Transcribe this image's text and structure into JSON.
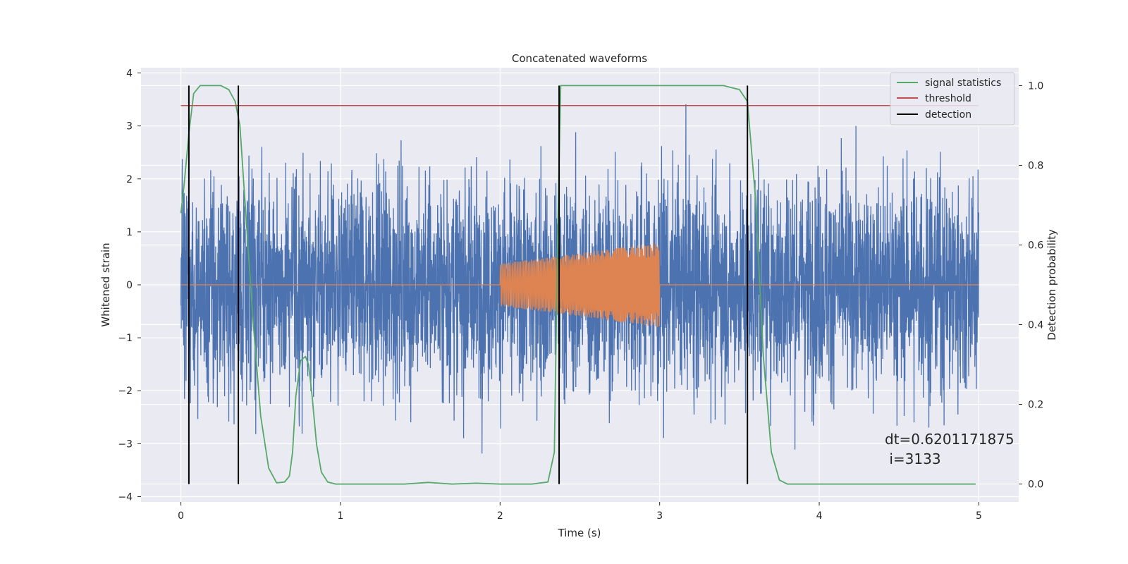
{
  "chart_data": {
    "type": "line",
    "title": "Concatenated waveforms",
    "xlabel": "Time (s)",
    "ylabel": "Whitened strain",
    "y2label": "Detection probability",
    "xlim": [
      -0.25,
      5.25
    ],
    "ylim": [
      -4.1,
      4.1
    ],
    "y2lim": [
      -0.045,
      1.045
    ],
    "xticks": [
      0,
      1,
      2,
      3,
      4,
      5
    ],
    "yticks": [
      -4,
      -3,
      -2,
      -1,
      0,
      1,
      2,
      3,
      4
    ],
    "y2ticks": [
      0.0,
      0.2,
      0.4,
      0.6,
      0.8,
      1.0
    ],
    "grid": true,
    "legend": {
      "placement": "top-right",
      "entries": [
        {
          "name": "signal statistics",
          "color": "#55a868"
        },
        {
          "name": "threshold",
          "color": "#c44e52"
        },
        {
          "name": "detection",
          "color": "#000000"
        }
      ]
    },
    "series": [
      {
        "name": "whitened noise",
        "color": "#4c72b0",
        "axis": "left",
        "x_range": [
          0,
          5
        ],
        "typical_amplitude": 1.0,
        "max_abs": 3.7
      },
      {
        "name": "injected waveform",
        "color": "#dd8452",
        "axis": "left",
        "x_range": [
          0,
          5
        ],
        "chirp_start": 2.0,
        "chirp_end": 3.0,
        "amp_start": 0.4,
        "amp_end": 0.8
      },
      {
        "name": "signal statistics",
        "color": "#55a868",
        "axis": "right",
        "x": [
          0.0,
          0.02,
          0.05,
          0.08,
          0.12,
          0.15,
          0.2,
          0.25,
          0.3,
          0.34,
          0.37,
          0.4,
          0.45,
          0.5,
          0.55,
          0.6,
          0.65,
          0.68,
          0.7,
          0.72,
          0.75,
          0.78,
          0.8,
          0.82,
          0.85,
          0.88,
          0.92,
          0.97,
          1.2,
          1.4,
          1.55,
          1.7,
          1.85,
          2.0,
          2.2,
          2.3,
          2.34,
          2.36,
          2.38,
          2.42,
          2.6,
          3.0,
          3.4,
          3.5,
          3.55,
          3.6,
          3.65,
          3.7,
          3.75,
          3.8,
          4.0,
          4.5,
          4.98
        ],
        "y": [
          0.68,
          0.75,
          0.88,
          0.98,
          1.0,
          1.0,
          1.0,
          1.0,
          0.99,
          0.96,
          0.9,
          0.72,
          0.42,
          0.17,
          0.04,
          0.003,
          0.005,
          0.02,
          0.08,
          0.22,
          0.31,
          0.32,
          0.3,
          0.23,
          0.1,
          0.03,
          0.005,
          0.0,
          0.0,
          0.0,
          0.004,
          0.0,
          0.002,
          0.0,
          0.0,
          0.005,
          0.08,
          0.6,
          1.0,
          1.0,
          1.0,
          1.0,
          1.0,
          0.99,
          0.96,
          0.72,
          0.32,
          0.08,
          0.01,
          0.0,
          0.0,
          0.0,
          0.0
        ]
      },
      {
        "name": "threshold",
        "color": "#c44e52",
        "axis": "right",
        "x": [
          0,
          5
        ],
        "y": [
          0.95,
          0.95
        ]
      },
      {
        "name": "detection",
        "color": "#000000",
        "axis": "right",
        "type": "vlines",
        "x": [
          0.05,
          0.36,
          2.37,
          3.55
        ],
        "y_range": [
          0.0,
          1.0
        ]
      }
    ],
    "annotation": {
      "line1": "dt=0.6201171875",
      "line2": " i=3133",
      "x": 4.5,
      "y": -3.0
    }
  }
}
